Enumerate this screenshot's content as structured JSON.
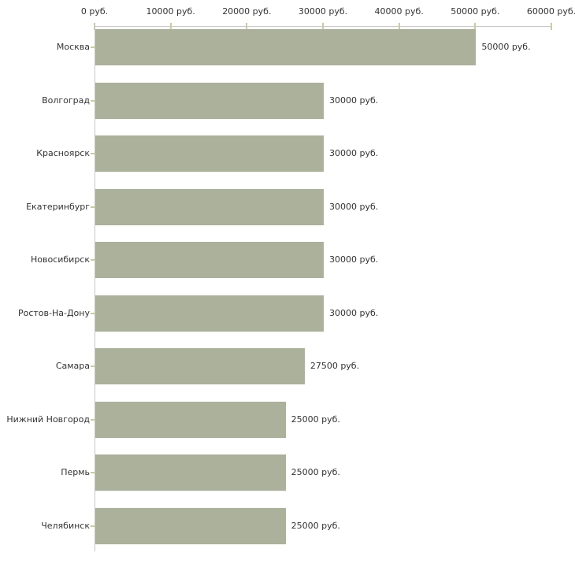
{
  "chart_data": {
    "type": "bar",
    "orientation": "horizontal",
    "title": "",
    "xlabel": "",
    "ylabel": "",
    "categories": [
      "Москва",
      "Волгоград",
      "Красноярск",
      "Екатеринбург",
      "Новосибирск",
      "Ростов-На-Дону",
      "Самара",
      "Нижний Новгород",
      "Пермь",
      "Челябинск"
    ],
    "values": [
      50000,
      30000,
      30000,
      30000,
      30000,
      30000,
      27500,
      25000,
      25000,
      25000
    ],
    "value_labels": [
      "50000 руб.",
      "30000 руб.",
      "30000 руб.",
      "30000 руб.",
      "30000 руб.",
      "30000 руб.",
      "27500 руб.",
      "25000 руб.",
      "25000 руб.",
      "25000 руб."
    ],
    "x_ticks": [
      0,
      10000,
      20000,
      30000,
      40000,
      50000,
      60000
    ],
    "x_tick_labels": [
      "0 руб.",
      "10000 руб.",
      "20000 руб.",
      "30000 руб.",
      "40000 руб.",
      "50000 руб.",
      "60000 руб."
    ],
    "xlim": [
      0,
      60000
    ],
    "grid": false,
    "legend": null,
    "bar_color": "#abb19a",
    "axis_color": "#c6c6c6",
    "tick_color": "#cbcc9b",
    "text_color": "#333333"
  }
}
